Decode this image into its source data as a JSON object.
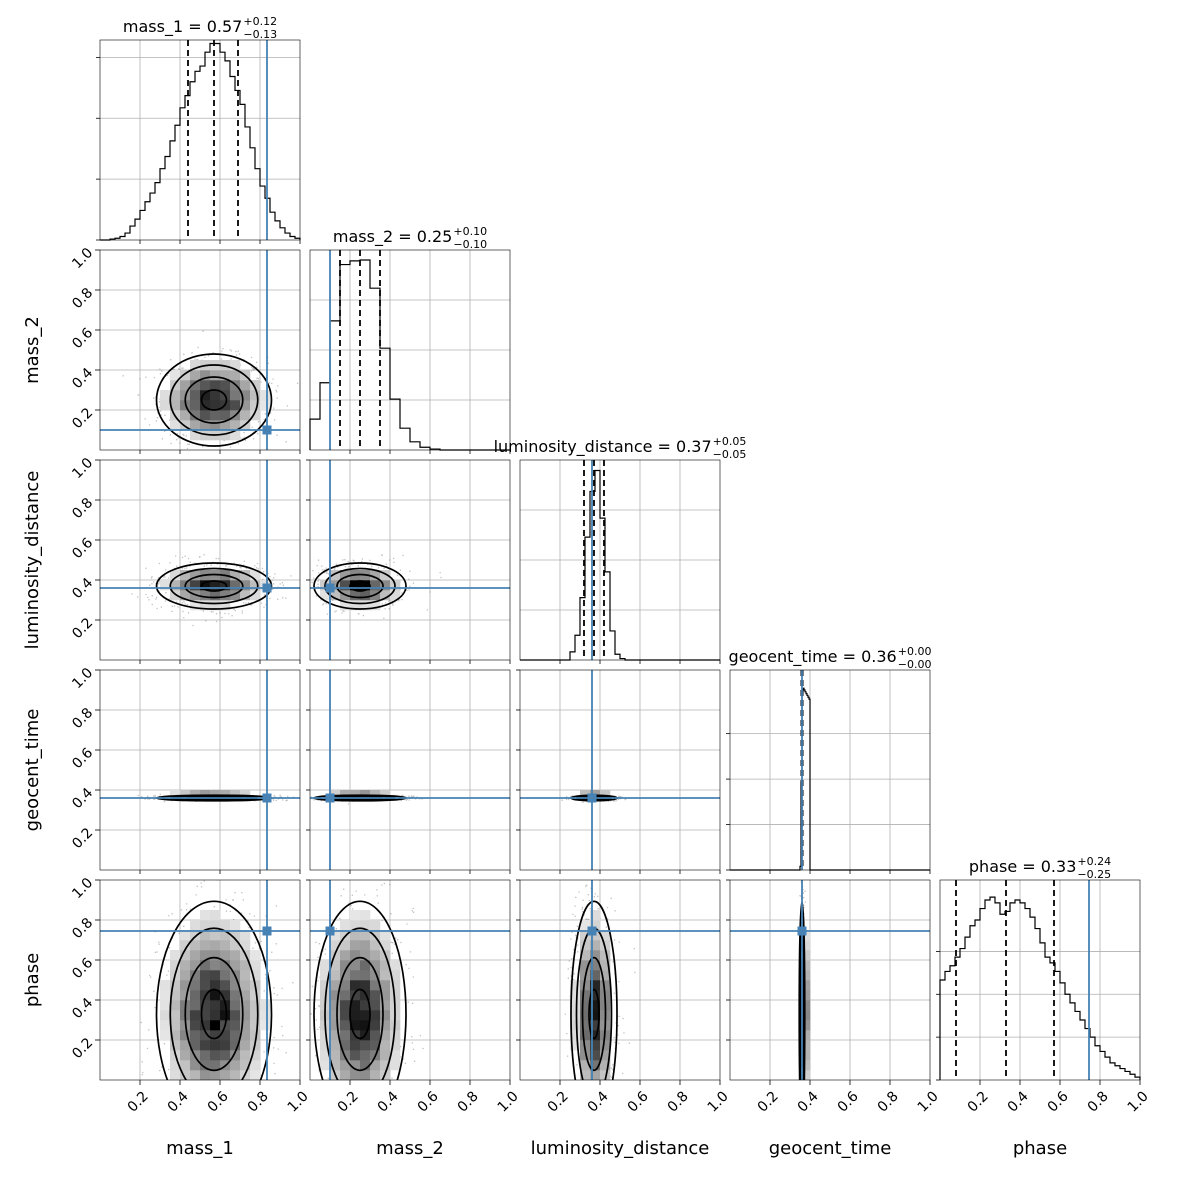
{
  "chart_data": {
    "type": "corner",
    "parameters": [
      "mass_1",
      "mass_2",
      "luminosity_distance",
      "geocent_time",
      "phase"
    ],
    "axis_range": [
      0,
      1
    ],
    "tick_values": [
      0.2,
      0.4,
      0.6,
      0.8,
      1.0
    ],
    "tick_labels": [
      "0.2",
      "0.4",
      "0.6",
      "0.8",
      "1.0"
    ],
    "grid": true,
    "truth_color": "#4682b4",
    "truths": {
      "mass_1": 0.835,
      "mass_2": 0.1,
      "luminosity_distance": 0.36,
      "geocent_time": 0.36,
      "phase": 0.745
    },
    "marginals": [
      {
        "param": "mass_1",
        "title_prefix": "mass_1 = ",
        "median_text": "0.57",
        "plus_text": "+0.12",
        "minus_text": "−0.13",
        "quantiles": [
          0.44,
          0.57,
          0.69
        ],
        "median": 0.57,
        "sigma": 0.125,
        "hist_ylim": [
          0,
          0.115
        ],
        "bins": [
          0.0,
          0.025,
          0.05,
          0.075,
          0.1,
          0.125,
          0.15,
          0.175,
          0.2,
          0.225,
          0.25,
          0.275,
          0.3,
          0.325,
          0.35,
          0.375,
          0.4,
          0.425,
          0.45,
          0.475,
          0.5,
          0.525,
          0.55,
          0.575,
          0.6,
          0.625,
          0.65,
          0.675,
          0.7,
          0.725,
          0.75,
          0.775,
          0.8,
          0.825,
          0.85,
          0.875,
          0.9,
          0.925,
          0.95,
          0.975,
          1.0
        ],
        "y_ticks": [
          0.0,
          0.035,
          0.07,
          0.105
        ]
      },
      {
        "param": "mass_2",
        "title_prefix": "mass_2 = ",
        "median_text": "0.25",
        "plus_text": "+0.10",
        "minus_text": "−0.10",
        "quantiles": [
          0.15,
          0.25,
          0.35
        ],
        "median": 0.25,
        "sigma": 0.1,
        "hist_ylim": [
          0,
          0.22
        ],
        "bins": [
          0.0,
          0.05,
          0.1,
          0.15,
          0.2,
          0.25,
          0.3,
          0.35,
          0.4,
          0.45,
          0.5,
          0.55,
          0.6,
          0.65,
          0.7,
          0.75,
          0.8,
          0.85,
          0.9,
          0.95,
          1.0
        ],
        "y_ticks": []
      },
      {
        "param": "luminosity_distance",
        "title_prefix": "luminosity_distance = ",
        "median_text": "0.37",
        "plus_text": "+0.05",
        "minus_text": "−0.05",
        "quantiles": [
          0.32,
          0.37,
          0.42
        ],
        "median": 0.37,
        "sigma": 0.05,
        "hist_ylim": [
          0,
          0.42
        ],
        "bins": [
          0.0,
          0.025,
          0.05,
          0.075,
          0.1,
          0.125,
          0.15,
          0.175,
          0.2,
          0.225,
          0.25,
          0.275,
          0.3,
          0.325,
          0.35,
          0.375,
          0.4,
          0.425,
          0.45,
          0.475,
          0.5,
          0.525,
          0.55,
          0.575,
          0.6,
          0.625,
          0.65,
          0.675,
          0.7,
          0.725,
          0.75,
          0.775,
          0.8,
          0.825,
          0.85,
          0.875,
          0.9,
          0.925,
          0.95,
          0.975,
          1.0
        ],
        "y_ticks": []
      },
      {
        "param": "geocent_time",
        "title_prefix": "geocent_time = ",
        "median_text": "0.36",
        "plus_text": "+0.00",
        "minus_text": "−0.00",
        "quantiles": [
          0.357,
          0.36,
          0.363
        ],
        "median": 0.36,
        "sigma": 0.006,
        "hist_ylim": [
          0,
          1.1
        ],
        "bins": [
          0.0,
          0.35,
          0.355,
          0.36,
          0.365,
          0.37,
          0.375,
          0.38,
          0.385,
          0.39,
          0.395,
          0.4,
          1.0
        ],
        "y_ticks": [
          0.0,
          0.25,
          0.5,
          0.75
        ]
      },
      {
        "param": "phase",
        "title_prefix": "phase = ",
        "median_text": "0.33",
        "plus_text": "+0.24",
        "minus_text": "−0.25",
        "quantiles": [
          0.08,
          0.33,
          0.57
        ],
        "median": 0.33,
        "sigma": 0.245,
        "hist_ylim": [
          0,
          0.07
        ],
        "bins": [
          0.0,
          0.025,
          0.05,
          0.075,
          0.1,
          0.125,
          0.15,
          0.175,
          0.2,
          0.225,
          0.25,
          0.275,
          0.3,
          0.325,
          0.35,
          0.375,
          0.4,
          0.425,
          0.45,
          0.475,
          0.5,
          0.525,
          0.55,
          0.575,
          0.6,
          0.625,
          0.65,
          0.675,
          0.7,
          0.725,
          0.75,
          0.775,
          0.8,
          0.825,
          0.85,
          0.875,
          0.9,
          0.925,
          0.95,
          0.975,
          1.0
        ],
        "y_ticks": [
          0.0,
          0.015,
          0.03,
          0.045
        ]
      }
    ],
    "hist_heights": {
      "mass_1": [
        0.0,
        0.0,
        0.0005,
        0.001,
        0.002,
        0.004,
        0.008,
        0.012,
        0.017,
        0.022,
        0.027,
        0.033,
        0.041,
        0.048,
        0.057,
        0.066,
        0.076,
        0.083,
        0.091,
        0.097,
        0.1,
        0.108,
        0.113,
        0.113,
        0.108,
        0.103,
        0.094,
        0.086,
        0.078,
        0.065,
        0.053,
        0.041,
        0.031,
        0.024,
        0.016,
        0.011,
        0.007,
        0.004,
        0.002,
        0.001
      ],
      "mass_2": [
        0.034,
        0.074,
        0.142,
        0.204,
        0.208,
        0.209,
        0.178,
        0.112,
        0.056,
        0.024,
        0.009,
        0.003,
        0.001,
        0.0,
        0.0,
        0.0,
        0.0,
        0.0,
        0.0,
        0.0
      ],
      "luminosity_distance": [
        0.0,
        0.0,
        0.0,
        0.0,
        0.0,
        0.0,
        0.0,
        0.0,
        0.0,
        0.0,
        0.017,
        0.052,
        0.131,
        0.258,
        0.354,
        0.398,
        0.298,
        0.185,
        0.061,
        0.012,
        0.003,
        0.0,
        0.0,
        0.0,
        0.0,
        0.0,
        0.0,
        0.0,
        0.0,
        0.0,
        0.0,
        0.0,
        0.0,
        0.0,
        0.0,
        0.0,
        0.0,
        0.0,
        0.0,
        0.0
      ],
      "geocent_time": [
        0.0,
        0.02,
        0.48,
        0.98,
        1.0,
        0.99,
        0.98,
        0.97,
        0.96,
        0.95,
        0.94,
        0.0
      ],
      "phase": [
        0.035,
        0.038,
        0.04,
        0.043,
        0.046,
        0.05,
        0.054,
        0.056,
        0.06,
        0.063,
        0.064,
        0.062,
        0.058,
        0.059,
        0.062,
        0.063,
        0.062,
        0.06,
        0.057,
        0.053,
        0.048,
        0.043,
        0.041,
        0.038,
        0.034,
        0.03,
        0.027,
        0.024,
        0.021,
        0.018,
        0.015,
        0.012,
        0.01,
        0.008,
        0.006,
        0.005,
        0.004,
        0.003,
        0.002,
        0.001
      ]
    },
    "pairs": [
      {
        "x": "mass_1",
        "y": "mass_2"
      },
      {
        "x": "mass_1",
        "y": "luminosity_distance"
      },
      {
        "x": "mass_2",
        "y": "luminosity_distance"
      },
      {
        "x": "mass_1",
        "y": "geocent_time"
      },
      {
        "x": "mass_2",
        "y": "geocent_time"
      },
      {
        "x": "luminosity_distance",
        "y": "geocent_time"
      },
      {
        "x": "mass_1",
        "y": "phase"
      },
      {
        "x": "mass_2",
        "y": "phase"
      },
      {
        "x": "luminosity_distance",
        "y": "phase"
      },
      {
        "x": "geocent_time",
        "y": "phase"
      }
    ]
  }
}
